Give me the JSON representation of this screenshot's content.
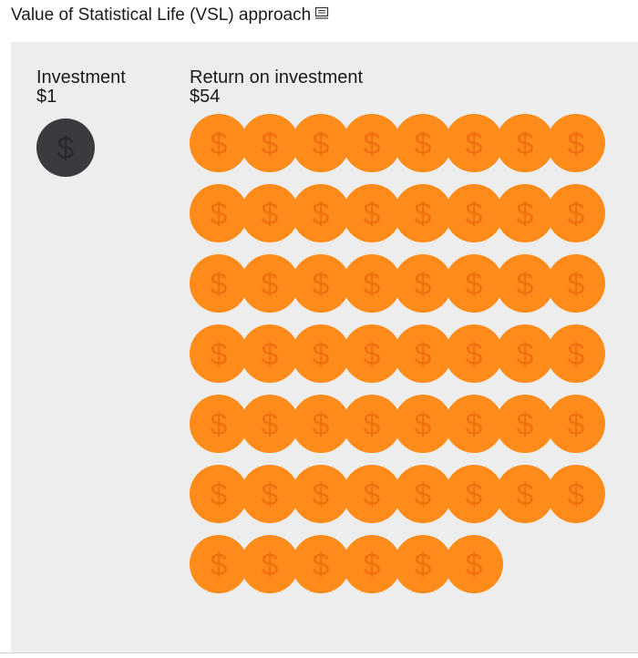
{
  "header": {
    "title": "Value of Statistical Life (VSL) approach",
    "note_icon": "note-icon"
  },
  "colors": {
    "panel_background": "#ededed",
    "investment_coin": "#3b3b3f",
    "investment_symbol": "#2a2a2e",
    "return_coin": "#ff8c1a",
    "return_symbol": "#f07010"
  },
  "chart_data": {
    "type": "pictogram",
    "unit_symbol": "$",
    "unit_value": 1,
    "coins_per_row": 8,
    "groups": [
      {
        "label": "Investment",
        "value_label": "$1",
        "value": 1,
        "icon": "dollar-coin-icon"
      },
      {
        "label": "Return on investment",
        "value_label": "$54",
        "value": 54,
        "icon": "dollar-coin-icon"
      }
    ]
  }
}
